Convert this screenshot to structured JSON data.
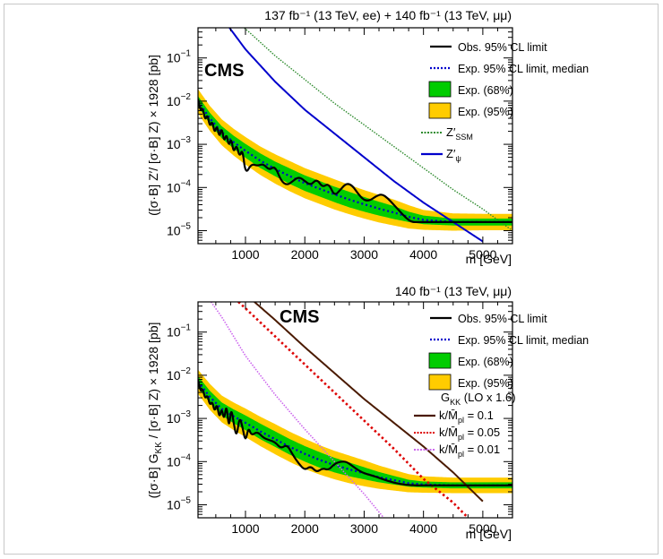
{
  "chart_data": [
    {
      "type": "line",
      "panel": "top",
      "lumi_label": "137 fb⁻¹ (13 TeV, ee) + 140 fb⁻¹ (13 TeV, μμ)",
      "cms_label": "CMS",
      "xlabel": "m [GeV]",
      "ylabel": "([σ·B] Z′/ [σ·B] Z) × 1928 [pb]",
      "xlim": [
        200,
        5500
      ],
      "ylim": [
        5e-06,
        0.5
      ],
      "yscale": "log",
      "xticks": [
        1000,
        2000,
        3000,
        4000,
        5000
      ],
      "xtick_labels": [
        "1000",
        "2000",
        "3000",
        "4000",
        "5000"
      ],
      "yticks": [
        1e-05,
        0.0001,
        0.001,
        0.01,
        0.1
      ],
      "ytick_labels": [
        [
          "10",
          "−5"
        ],
        [
          "10",
          "−4"
        ],
        [
          "10",
          "−3"
        ],
        [
          "10",
          "−2"
        ],
        [
          "10",
          "−1"
        ]
      ],
      "legend": [
        {
          "label": "Obs. 95% CL limit",
          "style": "line",
          "color": "#000000"
        },
        {
          "label": "Exp. 95% CL limit, median",
          "style": "dotted",
          "color": "#0000cc"
        },
        {
          "label": "Exp. (68%)",
          "style": "box",
          "color": "#00cc00"
        },
        {
          "label": "Exp. (95%)",
          "style": "box",
          "color": "#ffcc00"
        }
      ],
      "model_legend": [
        {
          "label": "Z′",
          "sub": "SSM",
          "style": "dotted",
          "color": "#2e8b2e"
        },
        {
          "label": "Z′",
          "sub": "ψ",
          "style": "line",
          "color": "#0000cc"
        }
      ],
      "x": [
        200,
        400,
        600,
        800,
        1000,
        1250,
        1500,
        1750,
        2000,
        2250,
        2500,
        2750,
        3000,
        3250,
        3500,
        3750,
        4000,
        4500,
        5000,
        5500
      ],
      "expected_median_log10": [
        -2.0,
        -2.4,
        -2.72,
        -2.95,
        -3.15,
        -3.38,
        -3.57,
        -3.74,
        -3.9,
        -4.03,
        -4.16,
        -4.28,
        -4.39,
        -4.49,
        -4.58,
        -4.68,
        -4.75,
        -4.8,
        -4.8,
        -4.8
      ],
      "band68_halfwidth_dex": [
        0.12,
        0.13,
        0.14,
        0.15,
        0.16,
        0.17,
        0.17,
        0.18,
        0.18,
        0.18,
        0.18,
        0.18,
        0.17,
        0.16,
        0.15,
        0.12,
        0.1,
        0.08,
        0.08,
        0.08
      ],
      "band95_halfwidth_dex": [
        0.28,
        0.29,
        0.3,
        0.31,
        0.32,
        0.33,
        0.34,
        0.35,
        0.35,
        0.35,
        0.35,
        0.34,
        0.33,
        0.32,
        0.3,
        0.27,
        0.23,
        0.2,
        0.19,
        0.19
      ],
      "observed": {
        "x": [
          200,
          240,
          280,
          320,
          360,
          400,
          440,
          480,
          520,
          560,
          600,
          640,
          680,
          720,
          760,
          800,
          850,
          900,
          950,
          1000,
          1100,
          1200,
          1300,
          1400,
          1500,
          1600,
          1700,
          1800,
          1900,
          2000,
          2100,
          2200,
          2300,
          2400,
          2500,
          2600,
          2700,
          2800,
          2900,
          3000,
          3100,
          3200,
          3300,
          3400,
          3500,
          3600,
          3700,
          3800,
          3900,
          4000,
          4500,
          5000,
          5500
        ],
        "log10": [
          -1.95,
          -2.25,
          -2.15,
          -2.45,
          -2.3,
          -2.6,
          -2.45,
          -2.75,
          -2.55,
          -2.85,
          -2.6,
          -2.95,
          -2.75,
          -3.05,
          -2.85,
          -3.2,
          -3.0,
          -3.3,
          -3.1,
          -3.7,
          -3.45,
          -3.5,
          -3.45,
          -3.6,
          -3.5,
          -3.85,
          -3.95,
          -3.85,
          -3.75,
          -3.85,
          -3.95,
          -3.8,
          -4.0,
          -3.9,
          -4.2,
          -4.05,
          -3.9,
          -3.95,
          -4.15,
          -4.3,
          -4.3,
          -4.2,
          -4.15,
          -4.25,
          -4.4,
          -4.55,
          -4.7,
          -4.8,
          -4.8,
          -4.8,
          -4.8,
          -4.8,
          -4.8
        ]
      },
      "zprime_psi": {
        "x": [
          730,
          1000,
          1500,
          2000,
          2500,
          3000,
          3500,
          4000,
          4500,
          5000
        ],
        "log10": [
          -0.3,
          -0.8,
          -1.55,
          -2.2,
          -2.75,
          -3.3,
          -3.85,
          -4.35,
          -4.8,
          -5.25
        ]
      },
      "zprime_ssm": {
        "x": [
          980,
          1500,
          2000,
          2500,
          3000,
          3500,
          4000,
          4500,
          5000,
          5500
        ],
        "log10": [
          -0.3,
          -0.95,
          -1.5,
          -2.05,
          -2.55,
          -3.05,
          -3.55,
          -4.05,
          -4.5,
          -5.0
        ]
      }
    },
    {
      "type": "line",
      "panel": "bottom",
      "lumi_label": "140 fb⁻¹ (13 TeV, μμ)",
      "cms_label": "CMS",
      "xlabel": "m [GeV]",
      "ylabel": "([σ·B] G",
      "ylabel_sub": "KK",
      "ylabel_rest": " / [σ·B] Z) × 1928 [pb]",
      "xlim": [
        200,
        5500
      ],
      "ylim": [
        5e-06,
        0.5
      ],
      "yscale": "log",
      "xticks": [
        1000,
        2000,
        3000,
        4000,
        5000
      ],
      "xtick_labels": [
        "1000",
        "2000",
        "3000",
        "4000",
        "5000"
      ],
      "yticks": [
        1e-05,
        0.0001,
        0.001,
        0.01,
        0.1
      ],
      "ytick_labels": [
        [
          "10",
          "−5"
        ],
        [
          "10",
          "−4"
        ],
        [
          "10",
          "−3"
        ],
        [
          "10",
          "−2"
        ],
        [
          "10",
          "−1"
        ]
      ],
      "legend": [
        {
          "label": "Obs. 95% CL limit",
          "style": "line",
          "color": "#000000"
        },
        {
          "label": "Exp. 95% CL limit, median",
          "style": "dotted",
          "color": "#0000cc"
        },
        {
          "label": "Exp. (68%)",
          "style": "box",
          "color": "#00cc00"
        },
        {
          "label": "Exp. (95%)",
          "style": "box",
          "color": "#ffcc00"
        }
      ],
      "model_header": {
        "label": "G",
        "sub": "KK",
        "rest": " (LO x 1.6)"
      },
      "model_legend": [
        {
          "label": "k/M̄",
          "sub": "pl",
          "rest": " = 0.1",
          "style": "line",
          "color": "#4a1a00"
        },
        {
          "label": "k/M̄",
          "sub": "pl",
          "rest": " = 0.05",
          "style": "dotted",
          "color": "#dd0000"
        },
        {
          "label": "k/M̄",
          "sub": "pl",
          "rest": " = 0.01",
          "style": "dotted",
          "color": "#cc66ee"
        }
      ],
      "x": [
        200,
        400,
        600,
        800,
        1000,
        1250,
        1500,
        1750,
        2000,
        2250,
        2500,
        2750,
        3000,
        3250,
        3500,
        3750,
        4000,
        4500,
        5000,
        5500
      ],
      "expected_median_log10": [
        -2.15,
        -2.5,
        -2.78,
        -2.95,
        -3.1,
        -3.3,
        -3.48,
        -3.66,
        -3.82,
        -3.96,
        -4.08,
        -4.18,
        -4.27,
        -4.36,
        -4.43,
        -4.5,
        -4.53,
        -4.55,
        -4.55,
        -4.55
      ],
      "band68_halfwidth_dex": [
        0.13,
        0.14,
        0.15,
        0.16,
        0.17,
        0.18,
        0.18,
        0.18,
        0.18,
        0.18,
        0.17,
        0.16,
        0.14,
        0.12,
        0.1,
        0.08,
        0.07,
        0.07,
        0.07,
        0.07
      ],
      "band95_halfwidth_dex": [
        0.28,
        0.3,
        0.31,
        0.32,
        0.33,
        0.34,
        0.35,
        0.35,
        0.35,
        0.34,
        0.33,
        0.32,
        0.3,
        0.27,
        0.24,
        0.21,
        0.19,
        0.18,
        0.18,
        0.18
      ],
      "observed": {
        "x": [
          200,
          240,
          280,
          320,
          360,
          400,
          440,
          480,
          520,
          560,
          600,
          640,
          680,
          720,
          760,
          800,
          850,
          900,
          950,
          1000,
          1050,
          1100,
          1200,
          1300,
          1400,
          1500,
          1600,
          1700,
          1800,
          1900,
          2000,
          2100,
          2200,
          2300,
          2400,
          2500,
          2600,
          2700,
          2800,
          2900,
          3000,
          3200,
          3400,
          3600,
          3800,
          4000,
          4500,
          5000,
          5500
        ],
        "log10": [
          -2.1,
          -2.4,
          -2.3,
          -2.55,
          -2.45,
          -2.7,
          -2.6,
          -2.85,
          -2.65,
          -3.0,
          -2.75,
          -3.05,
          -2.65,
          -3.25,
          -2.75,
          -3.1,
          -3.45,
          -2.95,
          -3.2,
          -3.55,
          -3.2,
          -3.4,
          -3.3,
          -3.45,
          -3.5,
          -3.55,
          -3.7,
          -3.6,
          -3.85,
          -4.05,
          -4.2,
          -4.1,
          -4.25,
          -4.15,
          -4.2,
          -4.05,
          -4.0,
          -4.0,
          -4.1,
          -4.2,
          -4.27,
          -4.35,
          -4.45,
          -4.52,
          -4.55,
          -4.55,
          -4.55,
          -4.55,
          -4.55
        ]
      },
      "gkk_0p1": {
        "x": [
          1150,
          1500,
          2000,
          2500,
          3000,
          3500,
          4000,
          4500,
          5000
        ],
        "log10": [
          -0.3,
          -0.72,
          -1.35,
          -1.95,
          -2.55,
          -3.1,
          -3.65,
          -4.25,
          -4.92
        ]
      },
      "gkk_0p05": {
        "x": [
          880,
          1000,
          1500,
          2000,
          2500,
          3000,
          3500,
          4000,
          4500,
          4750
        ],
        "log10": [
          -0.3,
          -0.45,
          -1.1,
          -1.75,
          -2.4,
          -3.05,
          -3.7,
          -4.4,
          -4.95,
          -5.3
        ]
      },
      "gkk_0p01": {
        "x": [
          420,
          600,
          1000,
          1500,
          2000,
          2500,
          3000,
          3330
        ],
        "log10": [
          -0.3,
          -0.65,
          -1.55,
          -2.45,
          -3.25,
          -4.0,
          -4.75,
          -5.3
        ]
      }
    }
  ]
}
